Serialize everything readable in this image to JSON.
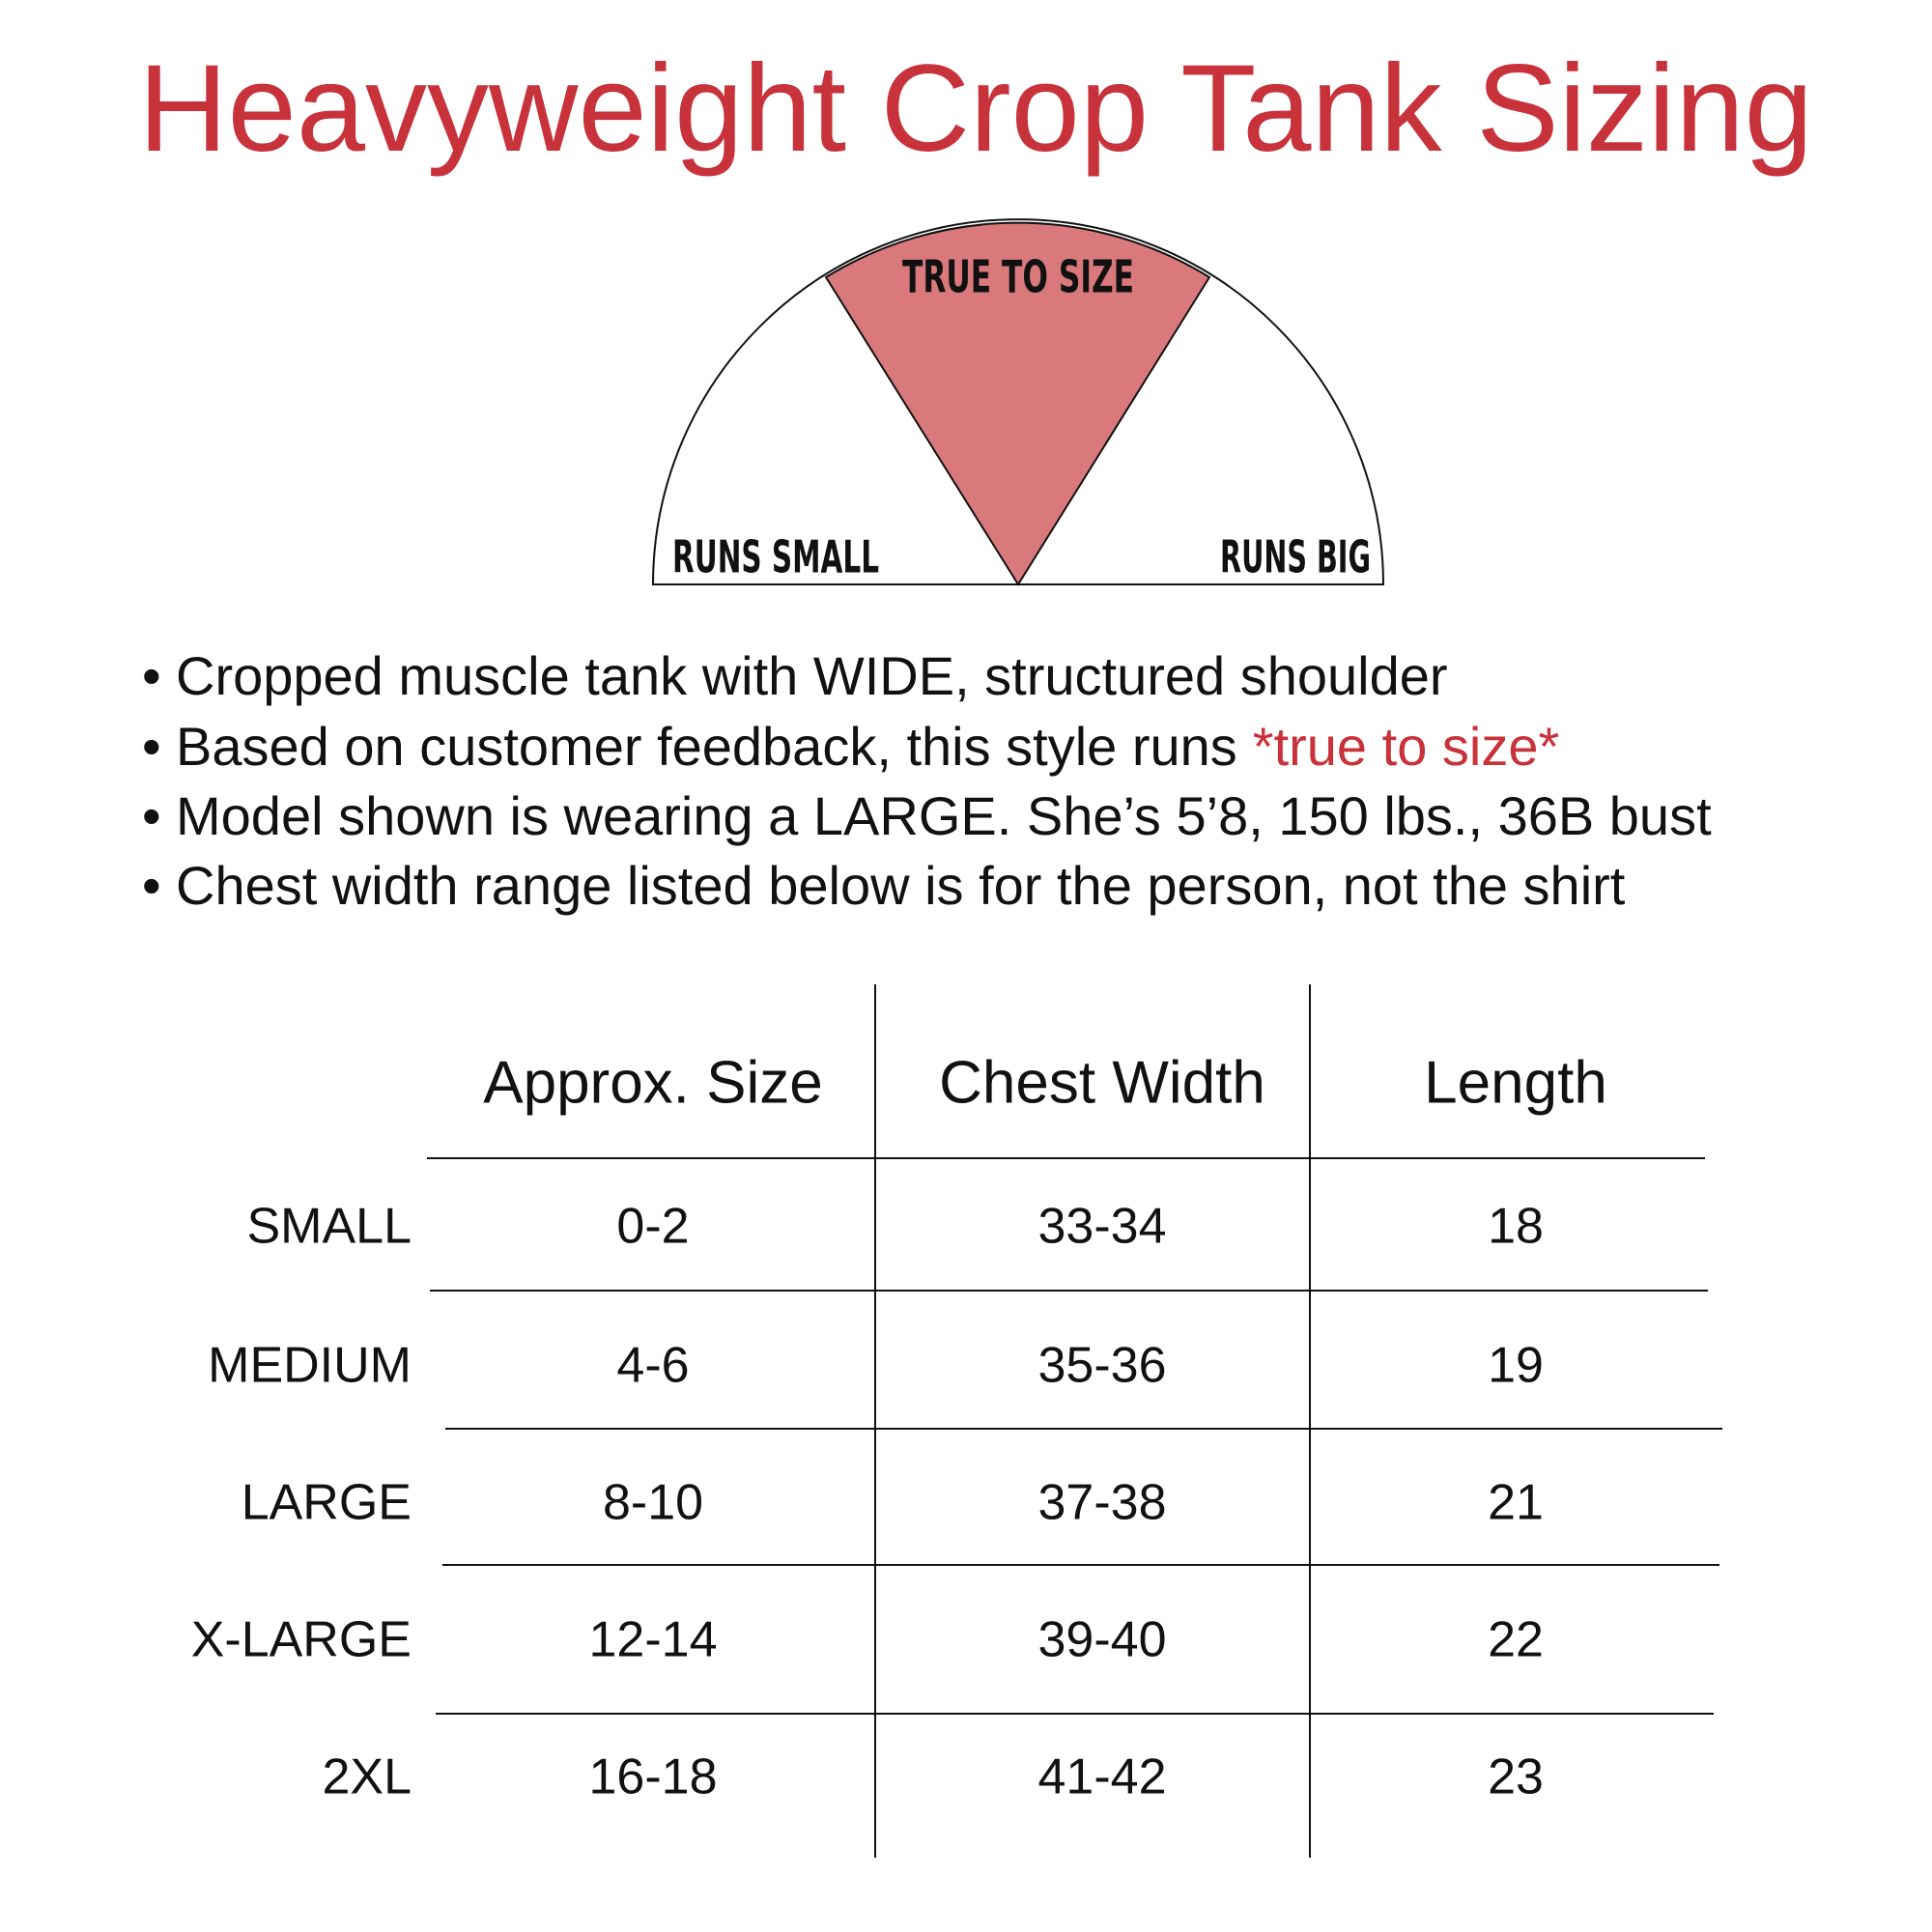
{
  "header": {
    "title": "Heavyweight Crop Tank Sizing"
  },
  "gauge": {
    "center": "TRUE TO SIZE",
    "left": "RUNS SMALL",
    "right": "RUNS BIG"
  },
  "bullets": [
    {
      "text": "Cropped muscle tank with WIDE, structured shoulder"
    },
    {
      "text": "Based on customer feedback, this style runs",
      "highlight": "*true to size*"
    },
    {
      "text": "Model shown is wearing a LARGE. She’s 5’8, 150 lbs., 36B bust"
    },
    {
      "text": "Chest width range listed below is for the person, not the shirt"
    }
  ],
  "table": {
    "headers": [
      "Approx. Size",
      "Chest Width",
      "Length"
    ],
    "rows": [
      {
        "label": "SMALL",
        "cells": [
          "0-2",
          "33-34",
          "18"
        ]
      },
      {
        "label": "MEDIUM",
        "cells": [
          "4-6",
          "35-36",
          "19"
        ]
      },
      {
        "label": "LARGE",
        "cells": [
          "8-10",
          "37-38",
          "21"
        ]
      },
      {
        "label": "X-LARGE",
        "cells": [
          "12-14",
          "39-40",
          "22"
        ]
      },
      {
        "label": "2XL",
        "cells": [
          "16-18",
          "41-42",
          "23"
        ]
      }
    ]
  }
}
